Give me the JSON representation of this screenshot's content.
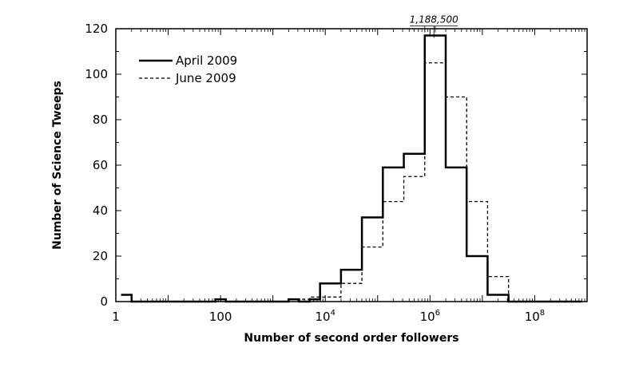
{
  "chart_data": {
    "type": "histogram-step",
    "xlabel": "Number of second order followers",
    "ylabel": "Number of Science Tweeps",
    "xscale": "log",
    "xlim": [
      1,
      1000000000.0
    ],
    "ylim": [
      0,
      120
    ],
    "x_ticks": [
      {
        "value": 1,
        "label": "1",
        "exp": ""
      },
      {
        "value": 100,
        "label": "100",
        "exp": ""
      },
      {
        "value": 10000,
        "label": "10",
        "exp": "4"
      },
      {
        "value": 1000000,
        "label": "10",
        "exp": "6"
      },
      {
        "value": 100000000,
        "label": "10",
        "exp": "8"
      }
    ],
    "y_ticks": [
      {
        "value": 0,
        "label": "0"
      },
      {
        "value": 20,
        "label": "20"
      },
      {
        "value": 40,
        "label": "40"
      },
      {
        "value": 60,
        "label": "60"
      },
      {
        "value": 80,
        "label": "80"
      },
      {
        "value": 100,
        "label": "100"
      },
      {
        "value": 120,
        "label": "120"
      }
    ],
    "bin_edges": [
      1.26,
      2.0,
      3.16,
      5.01,
      7.94,
      12.6,
      20.0,
      31.6,
      50.1,
      79.4,
      126,
      200,
      316,
      501,
      794,
      1259,
      1995,
      3162,
      5012,
      7943,
      12589,
      19953,
      31623,
      50119,
      79433,
      125893,
      199526,
      316228,
      501187,
      794328,
      1258925,
      1995262,
      3162278,
      5011872,
      7943282,
      12589254,
      19952623,
      31622777,
      50118723,
      79432823,
      125892541,
      199526231,
      316227766,
      501187234,
      794328235
    ],
    "series": [
      {
        "name": "April 2009",
        "style": "solid",
        "values": [
          3,
          0,
          0,
          0,
          0,
          0,
          0,
          0,
          0,
          1,
          0,
          0,
          0,
          0,
          0,
          0,
          1,
          0,
          1,
          8,
          8,
          14,
          14,
          37,
          37,
          59,
          59,
          65,
          65,
          117,
          117,
          59,
          59,
          20,
          20,
          3,
          3,
          0,
          0,
          0,
          0,
          0,
          0,
          0
        ]
      },
      {
        "name": "June 2009",
        "style": "dashed",
        "values": [
          3,
          0,
          0,
          0,
          0,
          0,
          0,
          0,
          0,
          0,
          0,
          0,
          0,
          0,
          0,
          0,
          1,
          1,
          2,
          2,
          2,
          8,
          8,
          24,
          24,
          44,
          44,
          55,
          55,
          105,
          105,
          90,
          90,
          44,
          44,
          11,
          11,
          0,
          0,
          0,
          0,
          0,
          0,
          0
        ]
      }
    ],
    "annotations": [
      {
        "text": "1,188,500",
        "x": 1188500,
        "y": 117
      }
    ],
    "legend_position": "top-left",
    "grid": false
  }
}
